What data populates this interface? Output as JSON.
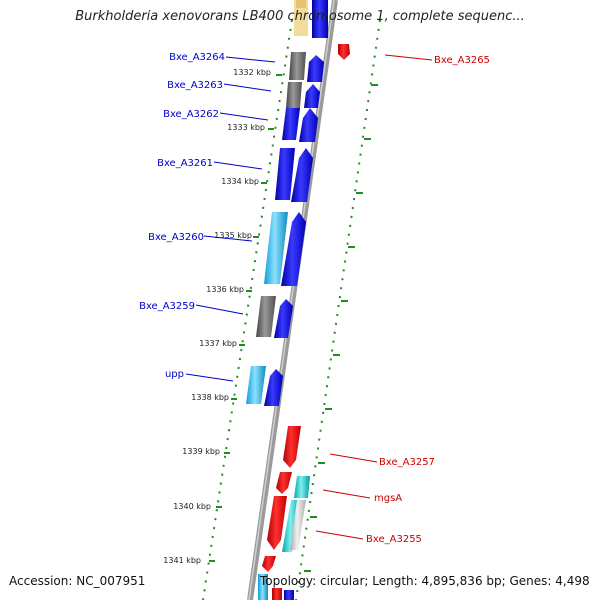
{
  "title": "Burkholderia xenovorans LB400 chromosome 1, complete sequenc...",
  "footer": {
    "accession": "Accession: NC_007951",
    "topology": "Topology: circular; Length: 4,895,836 bp; Genes: 4,498"
  },
  "colors": {
    "forward_label": "#0000cc",
    "reverse_label": "#cc0000",
    "tick": "#228b22",
    "backbone": "#808080"
  },
  "kbp_labels": [
    "1332 kbp",
    "1333 kbp",
    "1334 kbp",
    "1335 kbp",
    "1336 kbp",
    "1337 kbp",
    "1338 kbp",
    "1339 kbp",
    "1340 kbp",
    "1341 kbp"
  ],
  "left_genes": [
    "Bxe_A3264",
    "Bxe_A3263",
    "Bxe_A3262",
    "Bxe_A3261",
    "Bxe_A3260",
    "Bxe_A3259",
    "upp"
  ],
  "right_genes": [
    "Bxe_A3265",
    "Bxe_A3257",
    "mgsA",
    "Bxe_A3255"
  ]
}
